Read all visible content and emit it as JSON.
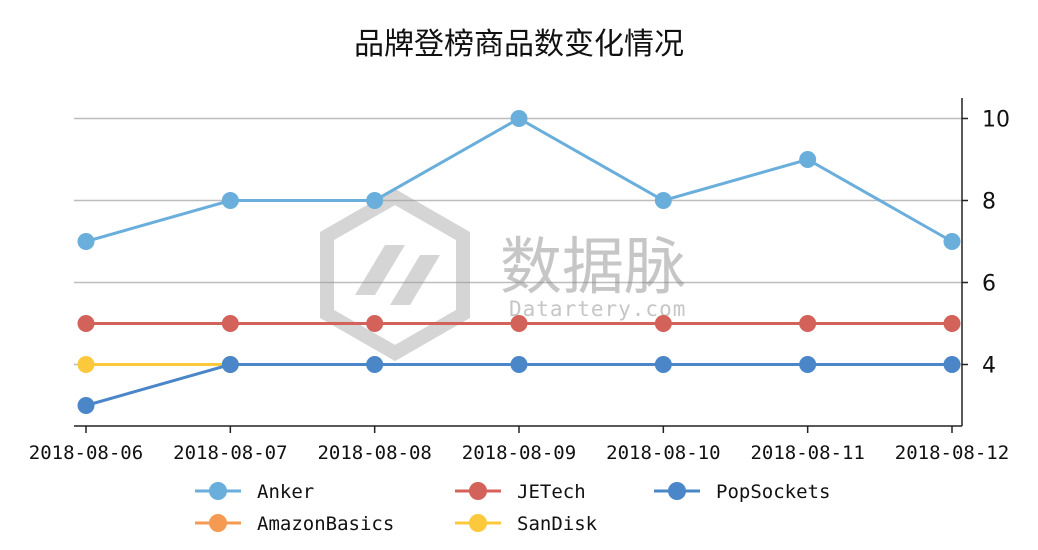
{
  "watermark": {
    "brand": "数据脉",
    "site": "Datartery.com"
  },
  "chart_data": {
    "type": "line",
    "title": "品牌登榜商品数变化情况",
    "xlabel": "",
    "ylabel": "",
    "categories": [
      "2018-08-06",
      "2018-08-07",
      "2018-08-08",
      "2018-08-09",
      "2018-08-10",
      "2018-08-11",
      "2018-08-12"
    ],
    "ylim": [
      2.5,
      10.5
    ],
    "yticks": [
      4,
      6,
      8,
      10
    ],
    "y_axis_side": "right",
    "grid": true,
    "legend_position": "bottom",
    "series": [
      {
        "name": "Anker",
        "color": "#6aaedb",
        "values": [
          7,
          8,
          8,
          10,
          8,
          9,
          7
        ]
      },
      {
        "name": "JETech",
        "color": "#d2625a",
        "values": [
          5,
          5,
          5,
          5,
          5,
          5,
          5
        ]
      },
      {
        "name": "PopSockets",
        "color": "#4a86c8",
        "values": [
          3,
          4,
          4,
          4,
          4,
          4,
          4
        ]
      },
      {
        "name": "AmazonBasics",
        "color": "#f59a52",
        "values": [
          null,
          null,
          null,
          null,
          null,
          null,
          null
        ]
      },
      {
        "name": "SanDisk",
        "color": "#fcc93c",
        "values": [
          4,
          4,
          null,
          null,
          null,
          null,
          null
        ]
      }
    ]
  }
}
